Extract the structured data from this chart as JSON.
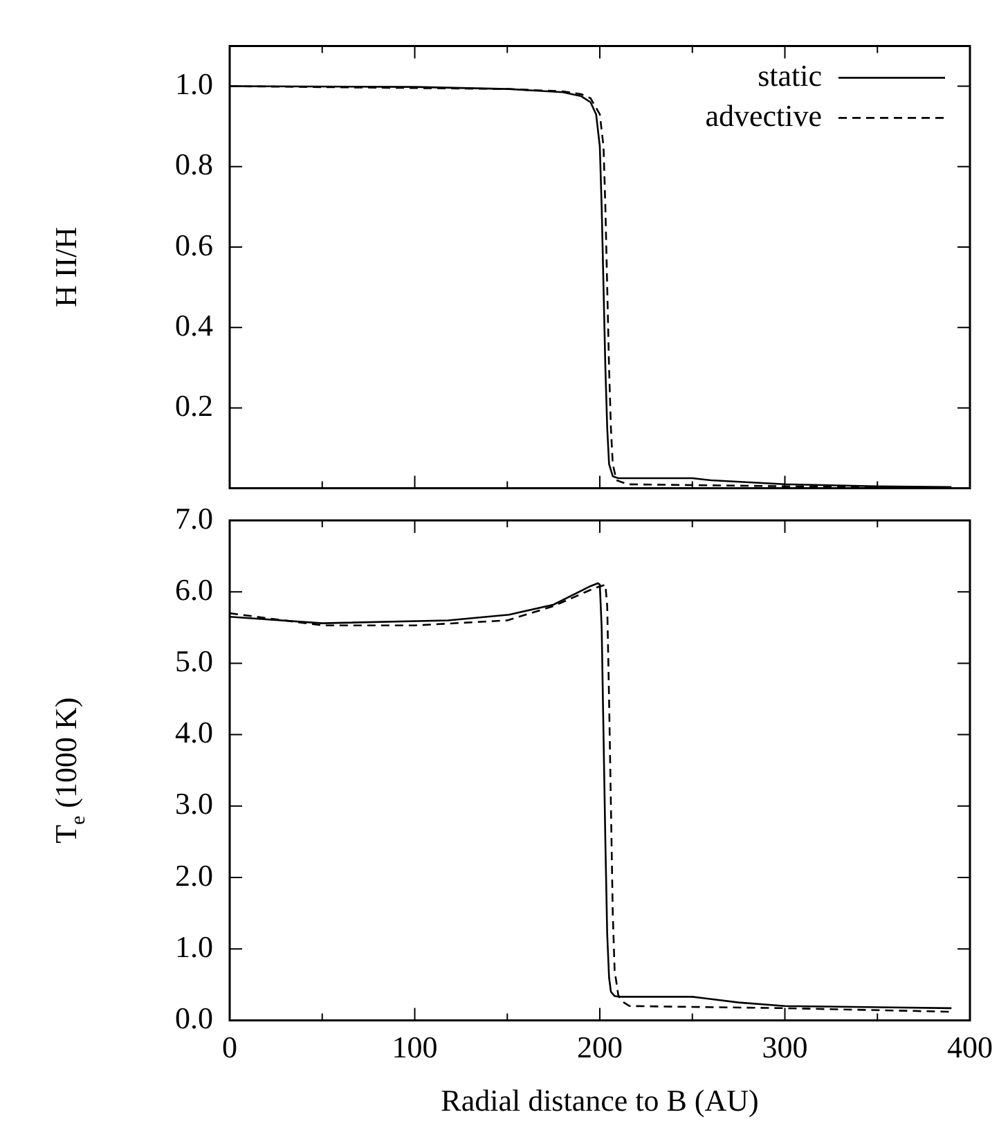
{
  "chart_data": [
    {
      "type": "line",
      "ylabel": "H II/H",
      "xlim": [
        0,
        400
      ],
      "ylim": [
        0,
        1.1
      ],
      "tick_labels": "y",
      "legend": "top right",
      "grid": false,
      "xticks": [
        {
          "value": 0,
          "label": null
        },
        {
          "value": 50,
          "label": null
        },
        {
          "value": 100,
          "label": null
        },
        {
          "value": 150,
          "label": null
        },
        {
          "value": 200,
          "label": null
        },
        {
          "value": 250,
          "label": null
        },
        {
          "value": 300,
          "label": null
        },
        {
          "value": 350,
          "label": null
        },
        {
          "value": 400,
          "label": null
        }
      ],
      "yticks": [
        {
          "value": 0,
          "label": null
        },
        {
          "value": 0.2,
          "label": "0.2"
        },
        {
          "value": 0.4,
          "label": "0.4"
        },
        {
          "value": 0.6,
          "label": "0.6"
        },
        {
          "value": 0.8,
          "label": "0.8"
        },
        {
          "value": 1.0,
          "label": "1.0"
        }
      ],
      "series": [
        {
          "name": "static",
          "color": "#000000",
          "line_style": "solid",
          "x": [
            0,
            100,
            150,
            180,
            190,
            195,
            198,
            200,
            201,
            202,
            203,
            204,
            205,
            207,
            210,
            250,
            260,
            300,
            350,
            390
          ],
          "values": [
            1.0,
            0.998,
            0.993,
            0.985,
            0.975,
            0.96,
            0.93,
            0.85,
            0.7,
            0.5,
            0.3,
            0.15,
            0.06,
            0.03,
            0.025,
            0.025,
            0.02,
            0.01,
            0.005,
            0.003
          ]
        },
        {
          "name": "advective",
          "color": "#000000",
          "line_style": "dashed",
          "x": [
            0,
            150,
            180,
            190,
            195,
            200,
            202,
            203,
            204,
            205,
            206,
            207,
            209,
            215,
            300,
            390
          ],
          "values": [
            1.0,
            0.993,
            0.987,
            0.98,
            0.97,
            0.93,
            0.85,
            0.7,
            0.5,
            0.3,
            0.15,
            0.06,
            0.02,
            0.01,
            0.005,
            0.002
          ]
        }
      ]
    },
    {
      "type": "line",
      "xlabel": "Radial distance to B (AU)",
      "ylabel": "T$_{e}$ (1000 K)",
      "xlim": [
        0,
        400
      ],
      "ylim": [
        0,
        7
      ],
      "legend": false,
      "grid": false,
      "xticks": [
        0,
        {
          "value": 50,
          "label": null
        },
        100,
        {
          "value": 150,
          "label": null
        },
        200,
        {
          "value": 250,
          "label": null
        },
        300,
        {
          "value": 350,
          "label": null
        },
        400
      ],
      "yticks": [
        {
          "value": 0,
          "label": "0.0"
        },
        {
          "value": 1,
          "label": "1.0"
        },
        {
          "value": 2,
          "label": "2.0"
        },
        {
          "value": 3,
          "label": "3.0"
        },
        {
          "value": 4,
          "label": "4.0"
        },
        {
          "value": 5,
          "label": "5.0"
        },
        {
          "value": 6,
          "label": "6.0"
        },
        {
          "value": 7,
          "label": "7.0"
        }
      ],
      "series": [
        {
          "color": "#000000",
          "line_style": "solid",
          "x": [
            0,
            50,
            118,
            151,
            175,
            195,
            199,
            200,
            201,
            202,
            203,
            204,
            205,
            206,
            208,
            210,
            250,
            275,
            300,
            390
          ],
          "values": [
            5.65,
            5.56,
            5.6,
            5.68,
            5.82,
            6.08,
            6.12,
            6.1,
            5.5,
            4.0,
            2.5,
            1.2,
            0.6,
            0.4,
            0.34,
            0.33,
            0.33,
            0.25,
            0.2,
            0.17
          ]
        },
        {
          "color": "#000000",
          "line_style": "dashed",
          "x": [
            0,
            50,
            100,
            150,
            175,
            197,
            203,
            204,
            205,
            206,
            207,
            208,
            210,
            213,
            216,
            300,
            390
          ],
          "values": [
            5.7,
            5.53,
            5.53,
            5.6,
            5.8,
            6.05,
            6.1,
            5.8,
            4.5,
            3.0,
            1.5,
            0.7,
            0.35,
            0.25,
            0.2,
            0.17,
            0.12
          ]
        }
      ]
    }
  ]
}
